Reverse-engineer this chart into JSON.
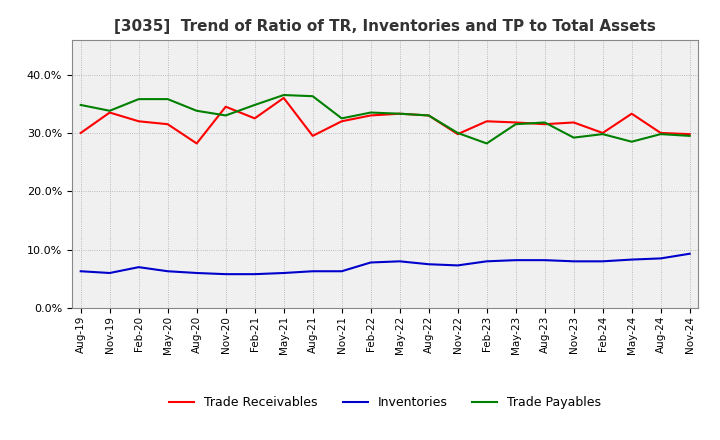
{
  "title": "[3035]  Trend of Ratio of TR, Inventories and TP to Total Assets",
  "x_labels": [
    "Aug-19",
    "Nov-19",
    "Feb-20",
    "May-20",
    "Aug-20",
    "Nov-20",
    "Feb-21",
    "May-21",
    "Aug-21",
    "Nov-21",
    "Feb-22",
    "May-22",
    "Aug-22",
    "Nov-22",
    "Feb-23",
    "May-23",
    "Aug-23",
    "Nov-23",
    "Feb-24",
    "May-24",
    "Aug-24",
    "Nov-24"
  ],
  "trade_receivables": [
    0.3,
    0.335,
    0.32,
    0.315,
    0.282,
    0.345,
    0.325,
    0.36,
    0.295,
    0.32,
    0.33,
    0.333,
    0.33,
    0.298,
    0.32,
    0.318,
    0.315,
    0.318,
    0.3,
    0.333,
    0.3,
    0.298
  ],
  "inventories": [
    0.063,
    0.06,
    0.07,
    0.063,
    0.06,
    0.058,
    0.058,
    0.06,
    0.063,
    0.063,
    0.078,
    0.08,
    0.075,
    0.073,
    0.08,
    0.082,
    0.082,
    0.08,
    0.08,
    0.083,
    0.085,
    0.093
  ],
  "trade_payables": [
    0.348,
    0.338,
    0.358,
    0.358,
    0.338,
    0.33,
    0.348,
    0.365,
    0.363,
    0.325,
    0.335,
    0.333,
    0.33,
    0.3,
    0.282,
    0.315,
    0.318,
    0.292,
    0.298,
    0.285,
    0.298,
    0.295
  ],
  "ylim": [
    0.0,
    0.46
  ],
  "yticks": [
    0.0,
    0.1,
    0.2,
    0.3,
    0.4
  ],
  "colors": {
    "trade_receivables": "#FF0000",
    "inventories": "#0000CC",
    "trade_payables": "#008000"
  },
  "legend_labels": [
    "Trade Receivables",
    "Inventories",
    "Trade Payables"
  ],
  "background_color": "#FFFFFF",
  "plot_bg_color": "#F0F0F0",
  "grid_color": "#AAAAAA"
}
